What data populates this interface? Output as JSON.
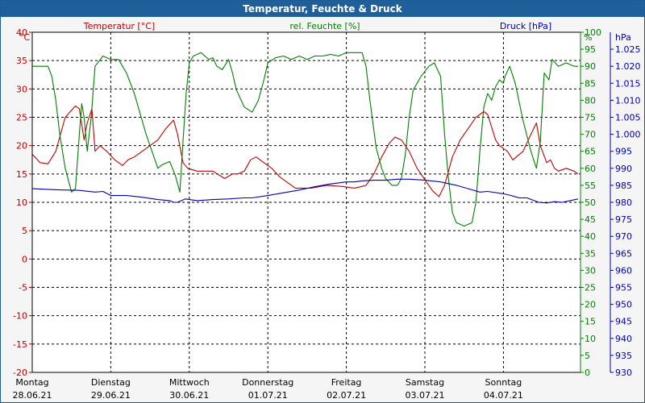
{
  "window_title": "Temperatur, Feuchte & Druck",
  "colors": {
    "temperature": "#c00000",
    "humidity": "#008000",
    "pressure": "#0000b0",
    "title_bar": "#1f5f9a",
    "plot_background": "#ffffff",
    "grid": "#000000"
  },
  "chart_data": {
    "type": "line",
    "title": "Temperatur, Feuchte & Druck",
    "grid": true,
    "grid_style": "dashed",
    "x": {
      "start": "28.06.21",
      "end": "05.07.21",
      "days": [
        {
          "weekday": "Montag",
          "date": "28.06.21"
        },
        {
          "weekday": "Dienstag",
          "date": "29.06.21"
        },
        {
          "weekday": "Mittwoch",
          "date": "30.06.21"
        },
        {
          "weekday": "Donnerstag",
          "date": "01.07.21"
        },
        {
          "weekday": "Freitag",
          "date": "02.07.21"
        },
        {
          "weekday": "Samstag",
          "date": "03.07.21"
        },
        {
          "weekday": "Sonntag",
          "date": "04.07.21"
        }
      ]
    },
    "axes": {
      "left": {
        "label": "°C",
        "series_label": "Temperatur [°C]",
        "ylim": [
          -20,
          40
        ],
        "ticks": [
          "40",
          "35",
          "30",
          "25",
          "20",
          "15",
          "10",
          "5",
          "0",
          "-5",
          "-10",
          "-15",
          "-20"
        ]
      },
      "right1": {
        "label": "%",
        "series_label": "rel. Feuchte [%]",
        "ylim": [
          0,
          100
        ],
        "ticks": [
          "100",
          "95",
          "90",
          "85",
          "80",
          "75",
          "70",
          "65",
          "60",
          "55",
          "50",
          "45",
          "40",
          "35",
          "30",
          "25",
          "20",
          "15",
          "10",
          "5",
          "0"
        ]
      },
      "right2": {
        "label": "hPa",
        "series_label": "Druck [hPa]",
        "ylim": [
          930,
          1030
        ],
        "ticks": [
          "1.025",
          "1.020",
          "1.015",
          "1.010",
          "1.005",
          "1.000",
          "995",
          "990",
          "985",
          "980",
          "975",
          "970",
          "965",
          "960",
          "955",
          "950",
          "945",
          "940",
          "935",
          "930"
        ]
      }
    },
    "series": [
      {
        "name": "Temperatur [°C]",
        "axis": "left",
        "color": "#c00000",
        "points": [
          [
            0,
            18.5
          ],
          [
            0.1,
            17
          ],
          [
            0.2,
            16.8
          ],
          [
            0.3,
            19
          ],
          [
            0.42,
            25
          ],
          [
            0.55,
            27
          ],
          [
            0.6,
            26.5
          ],
          [
            0.66,
            21
          ],
          [
            0.7,
            24
          ],
          [
            0.76,
            26.5
          ],
          [
            0.8,
            19
          ],
          [
            0.86,
            20
          ],
          [
            0.95,
            19
          ],
          [
            1.05,
            17.5
          ],
          [
            1.15,
            16.5
          ],
          [
            1.22,
            17.5
          ],
          [
            1.3,
            18
          ],
          [
            1.4,
            19
          ],
          [
            1.5,
            20
          ],
          [
            1.6,
            21
          ],
          [
            1.7,
            23
          ],
          [
            1.8,
            24.5
          ],
          [
            1.85,
            22
          ],
          [
            1.92,
            17
          ],
          [
            1.98,
            16
          ],
          [
            2.1,
            15.5
          ],
          [
            2.3,
            15.5
          ],
          [
            2.45,
            14.2
          ],
          [
            2.55,
            15
          ],
          [
            2.62,
            15
          ],
          [
            2.7,
            15.5
          ],
          [
            2.78,
            17.5
          ],
          [
            2.85,
            18
          ],
          [
            2.95,
            17
          ],
          [
            3.05,
            16
          ],
          [
            3.15,
            14.5
          ],
          [
            3.25,
            13.5
          ],
          [
            3.35,
            12.5
          ],
          [
            3.55,
            12.5
          ],
          [
            3.75,
            13
          ],
          [
            3.95,
            12.8
          ],
          [
            4.1,
            12.5
          ],
          [
            4.2,
            12.8
          ],
          [
            4.25,
            13
          ],
          [
            4.35,
            15
          ],
          [
            4.45,
            18
          ],
          [
            4.55,
            20.5
          ],
          [
            4.62,
            21.5
          ],
          [
            4.7,
            21
          ],
          [
            4.8,
            19
          ],
          [
            4.9,
            16
          ],
          [
            5,
            14
          ],
          [
            5.1,
            12
          ],
          [
            5.18,
            11
          ],
          [
            5.25,
            13
          ],
          [
            5.35,
            18
          ],
          [
            5.45,
            21
          ],
          [
            5.55,
            23
          ],
          [
            5.65,
            25
          ],
          [
            5.75,
            26
          ],
          [
            5.8,
            25.5
          ],
          [
            5.9,
            21
          ],
          [
            5.95,
            20
          ],
          [
            6.05,
            19
          ],
          [
            6.12,
            17.5
          ],
          [
            6.25,
            19
          ],
          [
            6.35,
            22
          ],
          [
            6.42,
            24
          ],
          [
            6.47,
            20
          ],
          [
            6.55,
            17
          ],
          [
            6.6,
            17.5
          ],
          [
            6.65,
            16
          ],
          [
            6.7,
            15.5
          ],
          [
            6.8,
            16
          ],
          [
            6.9,
            15.5
          ],
          [
            6.95,
            15
          ]
        ]
      },
      {
        "name": "rel. Feuchte [%]",
        "axis": "right1",
        "color": "#008000",
        "points": [
          [
            0,
            90
          ],
          [
            0.1,
            90
          ],
          [
            0.2,
            90
          ],
          [
            0.25,
            87
          ],
          [
            0.3,
            80
          ],
          [
            0.35,
            70
          ],
          [
            0.42,
            60
          ],
          [
            0.5,
            53
          ],
          [
            0.55,
            54
          ],
          [
            0.6,
            70
          ],
          [
            0.63,
            79
          ],
          [
            0.66,
            75
          ],
          [
            0.7,
            65
          ],
          [
            0.75,
            75
          ],
          [
            0.8,
            90
          ],
          [
            0.9,
            93
          ],
          [
            1.0,
            92
          ],
          [
            1.1,
            92
          ],
          [
            1.2,
            88
          ],
          [
            1.3,
            82
          ],
          [
            1.45,
            70
          ],
          [
            1.6,
            60
          ],
          [
            1.65,
            61
          ],
          [
            1.75,
            62
          ],
          [
            1.82,
            58
          ],
          [
            1.88,
            53
          ],
          [
            1.92,
            68
          ],
          [
            1.96,
            82
          ],
          [
            2.0,
            91
          ],
          [
            2.05,
            93
          ],
          [
            2.15,
            94
          ],
          [
            2.25,
            92
          ],
          [
            2.3,
            92.5
          ],
          [
            2.35,
            90
          ],
          [
            2.42,
            89
          ],
          [
            2.5,
            92
          ],
          [
            2.55,
            88
          ],
          [
            2.6,
            83
          ],
          [
            2.7,
            78
          ],
          [
            2.8,
            76.5
          ],
          [
            2.88,
            80
          ],
          [
            2.95,
            86
          ],
          [
            3.0,
            91
          ],
          [
            3.1,
            92.5
          ],
          [
            3.2,
            93
          ],
          [
            3.3,
            92
          ],
          [
            3.4,
            93
          ],
          [
            3.5,
            92
          ],
          [
            3.6,
            93
          ],
          [
            3.7,
            93
          ],
          [
            3.8,
            93.5
          ],
          [
            3.9,
            93
          ],
          [
            4.0,
            94
          ],
          [
            4.1,
            94
          ],
          [
            4.2,
            94
          ],
          [
            4.25,
            90
          ],
          [
            4.3,
            80
          ],
          [
            4.38,
            66
          ],
          [
            4.45,
            60
          ],
          [
            4.5,
            57
          ],
          [
            4.58,
            55
          ],
          [
            4.65,
            55
          ],
          [
            4.7,
            57
          ],
          [
            4.75,
            64
          ],
          [
            4.8,
            75
          ],
          [
            4.85,
            83
          ],
          [
            4.95,
            87
          ],
          [
            5.05,
            90
          ],
          [
            5.12,
            91
          ],
          [
            5.2,
            87
          ],
          [
            5.25,
            70
          ],
          [
            5.3,
            57
          ],
          [
            5.35,
            47
          ],
          [
            5.4,
            44
          ],
          [
            5.5,
            43
          ],
          [
            5.6,
            44
          ],
          [
            5.65,
            50
          ],
          [
            5.7,
            65
          ],
          [
            5.75,
            78
          ],
          [
            5.8,
            82
          ],
          [
            5.85,
            80
          ],
          [
            5.9,
            84
          ],
          [
            5.95,
            86
          ],
          [
            6.0,
            85
          ],
          [
            6.02,
            87
          ],
          [
            6.08,
            90
          ],
          [
            6.15,
            85
          ],
          [
            6.25,
            74
          ],
          [
            6.35,
            65
          ],
          [
            6.42,
            60
          ],
          [
            6.47,
            68
          ],
          [
            6.52,
            88
          ],
          [
            6.58,
            86
          ],
          [
            6.62,
            92
          ],
          [
            6.7,
            90
          ],
          [
            6.8,
            91
          ],
          [
            6.9,
            90
          ],
          [
            6.95,
            90
          ]
        ]
      },
      {
        "name": "Druck [hPa]",
        "axis": "right2",
        "color": "#0000b0",
        "points": [
          [
            0,
            984
          ],
          [
            0.3,
            983.7
          ],
          [
            0.6,
            983.5
          ],
          [
            0.8,
            983
          ],
          [
            0.9,
            983.2
          ],
          [
            1.0,
            982
          ],
          [
            1.2,
            982
          ],
          [
            1.4,
            981.5
          ],
          [
            1.6,
            980.8
          ],
          [
            1.75,
            980.5
          ],
          [
            1.8,
            980
          ],
          [
            1.85,
            980
          ],
          [
            1.95,
            981
          ],
          [
            2.1,
            980.5
          ],
          [
            2.3,
            980.8
          ],
          [
            2.5,
            981
          ],
          [
            2.7,
            981.3
          ],
          [
            2.8,
            981.3
          ],
          [
            3.0,
            982
          ],
          [
            3.2,
            982.8
          ],
          [
            3.4,
            983.6
          ],
          [
            3.6,
            984.6
          ],
          [
            3.8,
            985.4
          ],
          [
            4.0,
            986
          ],
          [
            4.1,
            986
          ],
          [
            4.2,
            986.3
          ],
          [
            4.35,
            986.5
          ],
          [
            4.5,
            986.5
          ],
          [
            4.65,
            986.8
          ],
          [
            4.8,
            986.8
          ],
          [
            5.0,
            986.5
          ],
          [
            5.2,
            986
          ],
          [
            5.4,
            985
          ],
          [
            5.55,
            984
          ],
          [
            5.7,
            983
          ],
          [
            5.8,
            983.2
          ],
          [
            6.0,
            982.5
          ],
          [
            6.1,
            982
          ],
          [
            6.2,
            981.3
          ],
          [
            6.3,
            981.3
          ],
          [
            6.45,
            980
          ],
          [
            6.55,
            979.8
          ],
          [
            6.65,
            980.2
          ],
          [
            6.75,
            980
          ],
          [
            6.85,
            980.5
          ],
          [
            6.95,
            981
          ]
        ]
      }
    ]
  }
}
